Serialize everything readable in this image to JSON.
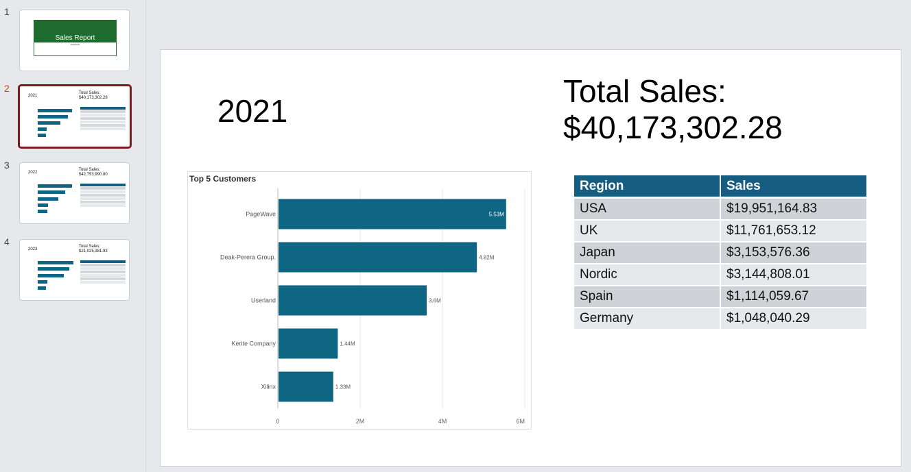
{
  "thumbnails": [
    {
      "number": "1",
      "title": "Sales Report",
      "subtitle": "8/28/2025"
    },
    {
      "number": "2",
      "year": "2021",
      "total": "Total Sales:\n$40,173,302.28"
    },
    {
      "number": "3",
      "year": "2022",
      "total": "Total Sales:\n$42,753,990.80"
    },
    {
      "number": "4",
      "year": "2023",
      "total": "Total Sales:\n$21,025,381.93"
    }
  ],
  "slide": {
    "year": "2021",
    "total_label": "Total Sales:",
    "total_value": "$40,173,302.28"
  },
  "chart_data": {
    "type": "bar",
    "orientation": "horizontal",
    "title": "Top 5 Customers",
    "categories": [
      "PageWave",
      "Deak-Perera Group.",
      "Userland",
      "Kerite Company",
      "Xilinx"
    ],
    "values": [
      5.53,
      4.82,
      3.6,
      1.44,
      1.33
    ],
    "data_labels": [
      "5.53M",
      "4.82M",
      "3.6M",
      "1.44M",
      "1.33M"
    ],
    "xlim": [
      0,
      6
    ],
    "x_ticks": [
      "0",
      "2M",
      "4M",
      "6M"
    ],
    "grid": true,
    "color": "#0e6683"
  },
  "table": {
    "headers": [
      "Region",
      "Sales"
    ],
    "rows": [
      [
        "USA",
        "$19,951,164.83"
      ],
      [
        "UK",
        "$11,761,653.12"
      ],
      [
        "Japan",
        "$3,153,576.36"
      ],
      [
        "Nordic",
        "$3,144,808.01"
      ],
      [
        "Spain",
        "$1,114,059.67"
      ],
      [
        "Germany",
        "$1,048,040.29"
      ]
    ]
  }
}
